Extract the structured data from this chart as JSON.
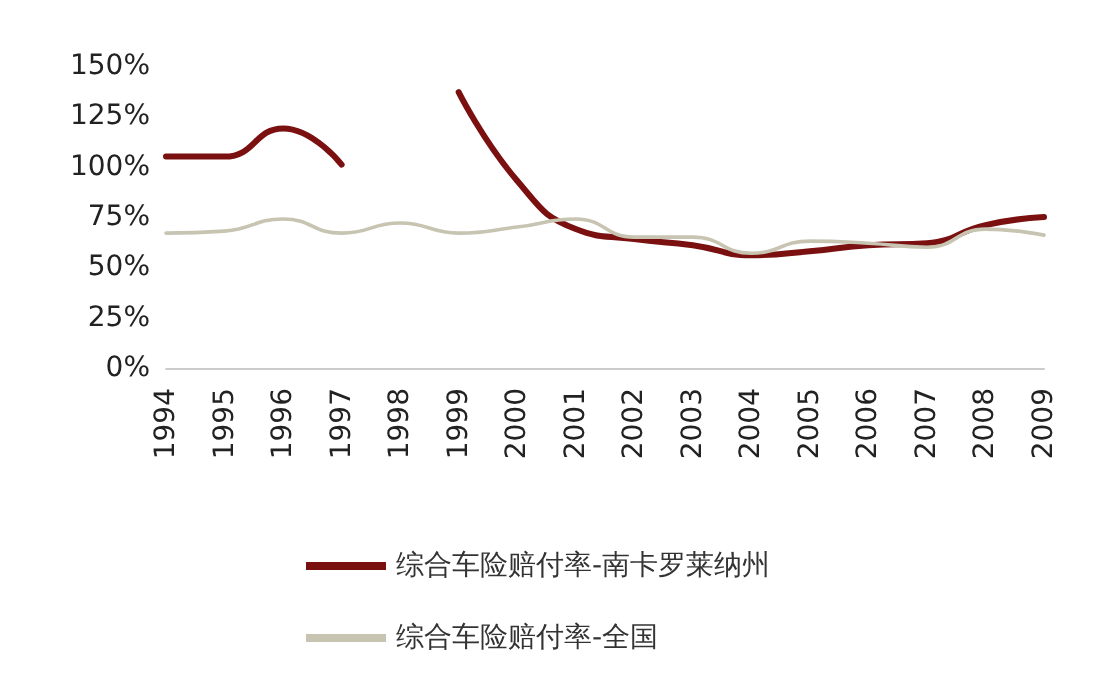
{
  "chart_data": {
    "type": "line",
    "categories": [
      "1994",
      "1995",
      "1996",
      "1997",
      "1998",
      "1999",
      "2000",
      "2001",
      "2002",
      "2003",
      "2004",
      "2005",
      "2006",
      "2007",
      "2008",
      "2009"
    ],
    "series": [
      {
        "name": "综合车险赔付率-南卡罗莱纳州",
        "color": "#7b1010",
        "values": [
          105,
          105,
          119,
          101,
          null,
          137,
          93,
          69,
          64,
          61,
          56,
          58,
          61,
          62,
          71,
          75
        ]
      },
      {
        "name": "综合车险赔付率-全国",
        "color": "#c8c4b2",
        "values": [
          67,
          68,
          74,
          67,
          72,
          67,
          70,
          74,
          65,
          65,
          57,
          63,
          62,
          60,
          69,
          66
        ]
      }
    ],
    "ylim": [
      0,
      150
    ],
    "yticks": [
      {
        "value": 0,
        "label": "0%"
      },
      {
        "value": 25,
        "label": "25%"
      },
      {
        "value": 50,
        "label": "50%"
      },
      {
        "value": 75,
        "label": "75%"
      },
      {
        "value": 100,
        "label": "100%"
      },
      {
        "value": 125,
        "label": "125%"
      },
      {
        "value": 150,
        "label": "150%"
      }
    ],
    "grid": false,
    "legend": "bottom",
    "marker": "none",
    "line_style": "solid"
  }
}
